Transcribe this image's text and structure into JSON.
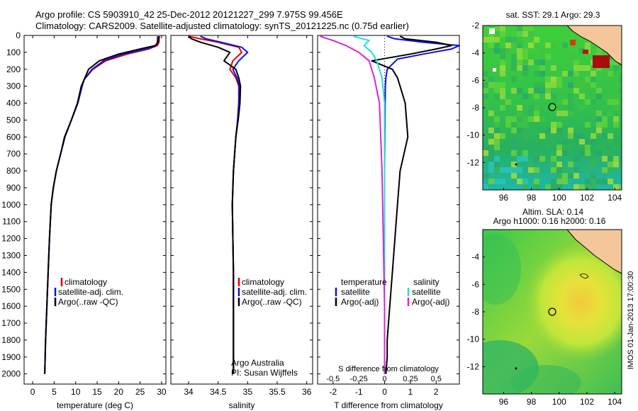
{
  "title_line1": "Argo profile: CS 5903910_42 25-Dec-2012 20121227_299 7.975S 99.456E",
  "title_line2": "Climatology: CARS2009. Satellite-adjusted climatology: synTS_20121225.nc (0.75d earlier)",
  "credit": {
    "line1": "Argo Australia",
    "line2": "PI: Susan Wijffels"
  },
  "imos_stamp": "IMOS 01-Jan-2013 17:00:30",
  "colors": {
    "climatology": "#dd0000",
    "satellite": "#1111dd",
    "argo": "#000000",
    "sal_satellite": "#22dddd",
    "sal_argo": "#dd22dd",
    "land": "#f5c69a"
  },
  "chart_data": [
    {
      "type": "line",
      "id": "temperature",
      "xlabel": "temperature (deg C)",
      "ylabel": "",
      "xlim": [
        -2,
        31
      ],
      "ylim": [
        2060,
        0
      ],
      "xticks": [
        0,
        5,
        10,
        15,
        20,
        25,
        30
      ],
      "yticks": [
        0,
        100,
        200,
        300,
        400,
        500,
        600,
        700,
        800,
        900,
        1000,
        1100,
        1200,
        1300,
        1400,
        1500,
        1600,
        1700,
        1800,
        1900,
        2000
      ],
      "legend": [
        "climatology",
        "satellite-adj. clim.",
        "Argo(..raw -QC)"
      ],
      "series": [
        {
          "name": "climatology",
          "x": [
            29.5,
            29.4,
            29,
            27,
            22,
            17,
            14,
            12,
            11.5,
            10.5,
            9,
            7.5,
            6.5,
            5.5,
            4.8,
            4.3,
            3.9,
            3.6,
            3.3,
            3.0,
            2.8
          ],
          "y": [
            5,
            40,
            60,
            80,
            110,
            150,
            200,
            260,
            300,
            400,
            500,
            600,
            700,
            800,
            900,
            1000,
            1200,
            1400,
            1600,
            1800,
            2000
          ]
        },
        {
          "name": "satellite-adj. clim.",
          "x": [
            29.1,
            29.0,
            28.7,
            26.5,
            21,
            16.5,
            13.8,
            12,
            11.5,
            10.5,
            9,
            7.5,
            6.5,
            5.5,
            4.8,
            4.3,
            3.9,
            3.6,
            3.3,
            3.0,
            2.8
          ],
          "y": [
            5,
            40,
            60,
            80,
            110,
            150,
            200,
            260,
            300,
            400,
            500,
            600,
            700,
            800,
            900,
            1000,
            1200,
            1400,
            1600,
            1800,
            2000
          ]
        },
        {
          "name": "Argo(..raw -QC)",
          "x": [
            29.3,
            29.2,
            28.5,
            25,
            20,
            15.5,
            13,
            12,
            11.3,
            10.4,
            9,
            7.4,
            6.5,
            5.5,
            4.8,
            4.3,
            3.9,
            3.6,
            3.3,
            3.0,
            2.8
          ],
          "y": [
            5,
            40,
            60,
            80,
            110,
            150,
            200,
            260,
            300,
            400,
            500,
            600,
            700,
            800,
            900,
            1000,
            1200,
            1400,
            1600,
            1800,
            2000
          ]
        }
      ]
    },
    {
      "type": "line",
      "id": "salinity",
      "xlabel": "salinity",
      "ylabel": "",
      "xlim": [
        33.7,
        36.1
      ],
      "ylim": [
        2060,
        0
      ],
      "xticks": [
        34,
        34.5,
        35,
        35.5,
        36
      ],
      "legend": [
        "climatology",
        "satellite-adj. clim.",
        "Argo(..raw -QC)"
      ],
      "series": [
        {
          "name": "climatology",
          "x": [
            34.0,
            34.2,
            34.5,
            34.85,
            34.9,
            34.75,
            34.7,
            34.8,
            34.85,
            34.85,
            34.83,
            34.8,
            34.78,
            34.76,
            34.75,
            34.74,
            34.75,
            34.76,
            34.76,
            34.76,
            34.76
          ],
          "y": [
            5,
            20,
            40,
            70,
            100,
            150,
            200,
            250,
            300,
            400,
            500,
            600,
            700,
            800,
            900,
            1000,
            1200,
            1400,
            1600,
            1800,
            2000
          ]
        },
        {
          "name": "satellite-adj. clim.",
          "x": [
            34.2,
            34.3,
            34.55,
            34.9,
            35.0,
            34.85,
            34.75,
            34.82,
            34.86,
            34.85,
            34.83,
            34.8,
            34.78,
            34.76,
            34.75,
            34.74,
            34.75,
            34.76,
            34.76,
            34.76,
            34.76
          ],
          "y": [
            5,
            20,
            40,
            70,
            100,
            150,
            200,
            250,
            300,
            400,
            500,
            600,
            700,
            800,
            900,
            1000,
            1200,
            1400,
            1600,
            1800,
            2000
          ]
        },
        {
          "name": "Argo(..raw -QC)",
          "x": [
            34.0,
            34.05,
            34.2,
            34.5,
            34.7,
            34.6,
            34.8,
            34.85,
            34.88,
            34.87,
            34.84,
            34.8,
            34.78,
            34.76,
            34.75,
            34.74,
            34.75,
            34.76,
            34.76,
            34.76,
            34.76
          ],
          "y": [
            5,
            20,
            40,
            70,
            100,
            150,
            200,
            250,
            300,
            400,
            500,
            600,
            700,
            800,
            900,
            1000,
            1200,
            1400,
            1600,
            1800,
            2000
          ]
        }
      ]
    },
    {
      "type": "line",
      "id": "difference",
      "xlabel": "T difference from climatology",
      "xlabel_top": "S difference from climatology",
      "ylabel": "",
      "xlim": [
        -2.6,
        2.9
      ],
      "ylim": [
        2060,
        0
      ],
      "xticks_T": [
        -2,
        -1,
        0,
        1,
        2
      ],
      "xticks_S": [
        "-0.5",
        "-0.25",
        "0",
        "0.25",
        "0.5"
      ],
      "legend_headers": [
        "temperature",
        "salinity"
      ],
      "legend": [
        "satellite",
        "Argo(-adj)",
        "satellite",
        "Argo(-adj)"
      ],
      "series": [
        {
          "name": "satellite",
          "x": [
            0.1,
            0.4,
            1.5,
            2.9,
            2.6,
            1.5,
            0.5,
            0.1,
            0.05,
            0.03,
            0.02,
            0.01,
            0,
            0,
            0,
            0,
            0,
            0,
            0,
            0
          ],
          "y": [
            5,
            20,
            40,
            60,
            80,
            110,
            140,
            200,
            250,
            300,
            400,
            600,
            800,
            1000,
            1200,
            1400,
            1600,
            1800,
            1900,
            2000
          ]
        },
        {
          "name": "Argo(-adj)",
          "x": [
            0.6,
            0.8,
            2.0,
            2.6,
            2.0,
            1.0,
            -0.5,
            0.3,
            0.5,
            0.6,
            0.8,
            0.9,
            0.6,
            0.5,
            0.4,
            0.3,
            0.2,
            0.1,
            0.1,
            0.05
          ],
          "y": [
            5,
            20,
            40,
            60,
            80,
            110,
            150,
            200,
            250,
            300,
            400,
            600,
            800,
            1000,
            1200,
            1400,
            1600,
            1800,
            1900,
            2000
          ]
        },
        {
          "name": "satellite",
          "x": [
            -1.2,
            -0.6,
            -0.8,
            -0.5,
            -0.3,
            -0.1,
            0,
            0,
            0,
            0,
            0,
            0
          ],
          "y": [
            5,
            30,
            60,
            100,
            150,
            250,
            400,
            800,
            1200,
            1600,
            1900,
            2000
          ]
        },
        {
          "name": "Argo(-adj)",
          "x": [
            -2.5,
            -2.0,
            -1.5,
            -1.0,
            -0.6,
            -0.4,
            -0.2,
            -0.1,
            -0.05,
            0,
            0,
            0
          ],
          "y": [
            5,
            30,
            60,
            100,
            150,
            250,
            400,
            800,
            1200,
            1600,
            1900,
            2000
          ]
        }
      ]
    },
    {
      "type": "heatmap",
      "id": "sst_map",
      "title": "sat. SST: 29.1  Argo: 29.3",
      "xlim": [
        94.5,
        104.5
      ],
      "ylim": [
        -14,
        -2
      ],
      "xticks": [
        96,
        98,
        100,
        102,
        104
      ],
      "yticks": [
        -2,
        -4,
        -6,
        -8,
        -10,
        -12
      ],
      "profile_location": {
        "lon": 99.456,
        "lat": -7.975
      }
    },
    {
      "type": "heatmap",
      "id": "sla_map",
      "title": "Altim. SLA: 0.14",
      "subtitle": "Argo h1000: 0.16  h2000: 0.16",
      "xlim": [
        94.5,
        104.5
      ],
      "ylim": [
        -14,
        -2
      ],
      "xticks": [
        96,
        98,
        100,
        102,
        104
      ],
      "yticks": [
        -4,
        -6,
        -8,
        -10,
        -12
      ],
      "profile_location": {
        "lon": 99.456,
        "lat": -7.975
      }
    }
  ]
}
